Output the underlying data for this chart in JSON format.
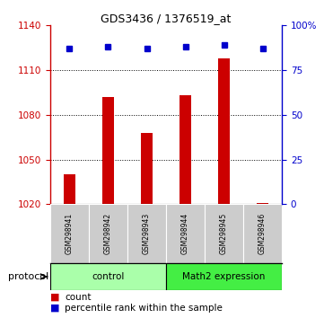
{
  "title": "GDS3436 / 1376519_at",
  "samples": [
    "GSM298941",
    "GSM298942",
    "GSM298943",
    "GSM298944",
    "GSM298945",
    "GSM298946"
  ],
  "counts": [
    1040,
    1092,
    1068,
    1093,
    1118,
    1021
  ],
  "percentiles": [
    87,
    88,
    87,
    88,
    89,
    87
  ],
  "ylim_left": [
    1020,
    1140
  ],
  "ylim_right": [
    0,
    100
  ],
  "yticks_left": [
    1020,
    1050,
    1080,
    1110,
    1140
  ],
  "yticks_right": [
    0,
    25,
    50,
    75,
    100
  ],
  "ytick_labels_right": [
    "0",
    "25",
    "50",
    "75",
    "100%"
  ],
  "bar_color": "#cc0000",
  "dot_color": "#0000cc",
  "n_control": 3,
  "n_math2": 3,
  "control_label": "control",
  "math2_label": "Math2 expression",
  "protocol_label": "protocol",
  "legend_count": "count",
  "legend_percentile": "percentile rank within the sample",
  "control_color": "#aaffaa",
  "math2_color": "#44ee44",
  "sample_bg_color": "#cccccc",
  "baseline": 1020,
  "bar_width": 0.3
}
